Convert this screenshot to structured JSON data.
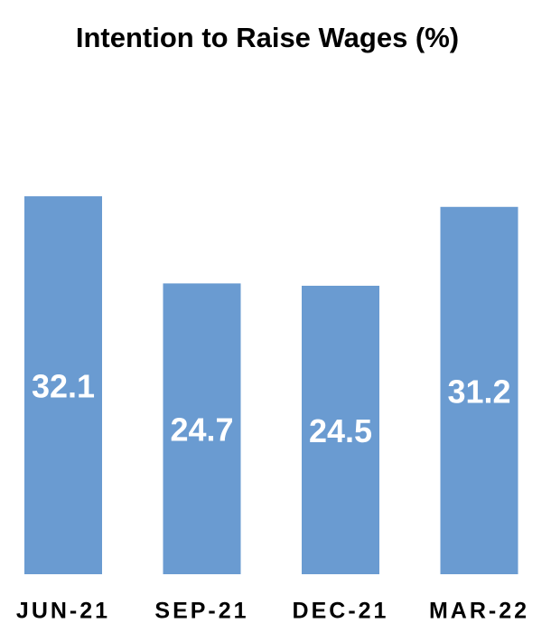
{
  "chart_data": {
    "type": "bar",
    "title": "Intention to Raise Wages (%)",
    "categories": [
      "JUN-21",
      "SEP-21",
      "DEC-21",
      "MAR-22"
    ],
    "values": [
      32.1,
      24.7,
      24.5,
      31.2
    ],
    "color": "#6a9bd1"
  }
}
